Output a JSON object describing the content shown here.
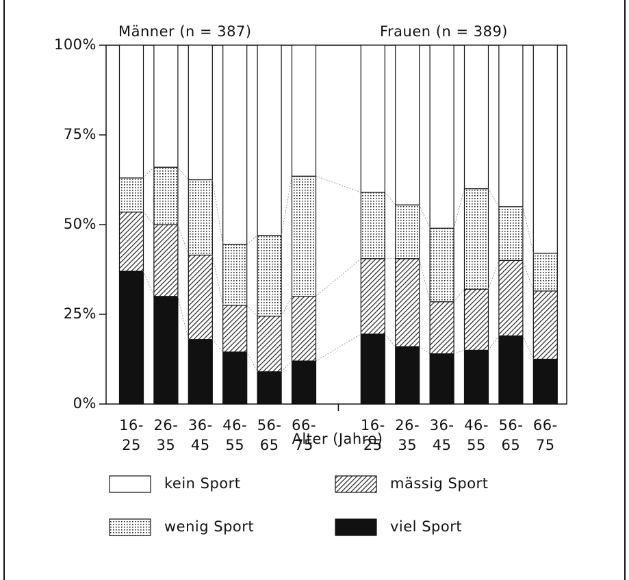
{
  "chart_data": {
    "type": "stacked-bar",
    "groups": [
      {
        "label": "Männer (n = 387)"
      },
      {
        "label": "Frauen (n = 389)"
      }
    ],
    "x_label": "Alter (Jahre)",
    "categories": [
      [
        "16-",
        "25"
      ],
      [
        "26-",
        "35"
      ],
      [
        "36-",
        "45"
      ],
      [
        "46-",
        "55"
      ],
      [
        "56-",
        "65"
      ],
      [
        "66-",
        "75"
      ],
      null,
      [
        "16-",
        "25"
      ],
      [
        "26-",
        "35"
      ],
      [
        "36-",
        "45"
      ],
      [
        "46-",
        "55"
      ],
      [
        "56-",
        "65"
      ],
      [
        "66-",
        "75"
      ]
    ],
    "series": [
      {
        "name": "viel Sport",
        "color": "#111111",
        "pattern": "solid",
        "values": [
          37,
          30,
          18,
          14.5,
          9,
          12,
          null,
          19.5,
          16,
          14,
          15,
          19,
          12.5
        ]
      },
      {
        "name": "mässig Sport",
        "color": "#333333",
        "pattern": "hatch",
        "values": [
          16.5,
          20,
          23.5,
          13,
          15.5,
          18,
          null,
          21,
          24.5,
          14.5,
          17,
          21,
          19
        ]
      },
      {
        "name": "wenig Sport",
        "color": "#555555",
        "pattern": "dots",
        "values": [
          9.5,
          16,
          21,
          17,
          22.5,
          33.5,
          null,
          18.5,
          15,
          20.5,
          28,
          15,
          10.5
        ]
      },
      {
        "name": "kein Sport",
        "color": "#ffffff",
        "pattern": "none",
        "values": [
          37,
          34,
          37.5,
          55.5,
          53,
          36.5,
          null,
          41,
          44.5,
          51,
          40,
          45,
          58
        ]
      }
    ],
    "ylim": [
      0,
      100
    ],
    "yticks": [
      {
        "value": 0,
        "label": "0%"
      },
      {
        "value": 25,
        "label": "25%"
      },
      {
        "value": 50,
        "label": "50%"
      },
      {
        "value": 75,
        "label": "75%"
      },
      {
        "value": 100,
        "label": "100%"
      }
    ],
    "connectors": true
  }
}
